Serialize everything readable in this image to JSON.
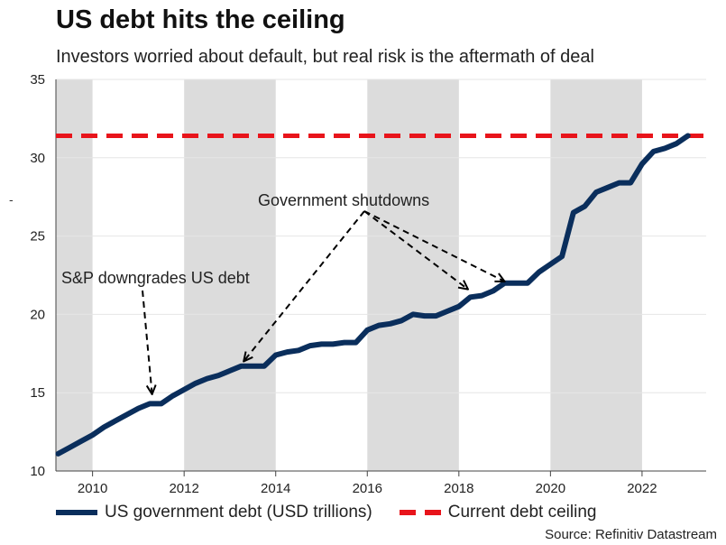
{
  "header": {
    "title": "US debt hits the ceiling",
    "subtitle": "Investors worried about default, but real risk is the aftermath of deal",
    "stray_mark": "-"
  },
  "legend": {
    "debt_label": "US government debt (USD trillions)",
    "ceiling_label": "Current debt ceiling"
  },
  "source": "Source: Refinitiv Datastream",
  "colors": {
    "debt": "#0a2e5c",
    "ceiling": "#e8141b",
    "band": "#dcdcdc",
    "grid": "#e6e6e6"
  },
  "chart_data": {
    "type": "line",
    "title": "US debt hits the ceiling",
    "subtitle": "Investors worried about default, but real risk is the aftermath of deal",
    "xlim": [
      2009.2,
      2023.4
    ],
    "ylim": [
      10,
      35
    ],
    "x_ticks": [
      2010,
      2012,
      2014,
      2016,
      2018,
      2020,
      2022
    ],
    "y_ticks": [
      10,
      15,
      20,
      25,
      30,
      35
    ],
    "grid": true,
    "legend_position": "bottom",
    "shaded_bands": [
      [
        2009.2,
        2010.0
      ],
      [
        2012.0,
        2014.0
      ],
      [
        2016.0,
        2018.0
      ],
      [
        2020.0,
        2022.0
      ]
    ],
    "reference_lines": [
      {
        "name": "Current debt ceiling",
        "y": 31.4,
        "style": "dashed"
      }
    ],
    "series": [
      {
        "name": "US government debt (USD trillions)",
        "x": [
          2009.25,
          2009.5,
          2009.75,
          2010.0,
          2010.25,
          2010.5,
          2010.75,
          2011.0,
          2011.25,
          2011.5,
          2011.75,
          2012.0,
          2012.25,
          2012.5,
          2012.75,
          2013.0,
          2013.25,
          2013.5,
          2013.75,
          2014.0,
          2014.25,
          2014.5,
          2014.75,
          2015.0,
          2015.25,
          2015.5,
          2015.75,
          2016.0,
          2016.25,
          2016.5,
          2016.75,
          2017.0,
          2017.25,
          2017.5,
          2017.75,
          2018.0,
          2018.25,
          2018.5,
          2018.75,
          2019.0,
          2019.25,
          2019.5,
          2019.75,
          2020.0,
          2020.25,
          2020.5,
          2020.75,
          2021.0,
          2021.25,
          2021.5,
          2021.75,
          2022.0,
          2022.25,
          2022.5,
          2022.75,
          2023.0
        ],
        "y": [
          11.1,
          11.5,
          11.9,
          12.3,
          12.8,
          13.2,
          13.6,
          14.0,
          14.3,
          14.3,
          14.8,
          15.2,
          15.6,
          15.9,
          16.1,
          16.4,
          16.7,
          16.7,
          16.7,
          17.4,
          17.6,
          17.7,
          18.0,
          18.1,
          18.1,
          18.2,
          18.2,
          19.0,
          19.3,
          19.4,
          19.6,
          20.0,
          19.9,
          19.9,
          20.2,
          20.5,
          21.1,
          21.2,
          21.5,
          22.0,
          22.0,
          22.0,
          22.7,
          23.2,
          23.7,
          26.5,
          26.9,
          27.8,
          28.1,
          28.4,
          28.4,
          29.6,
          30.4,
          30.6,
          30.9,
          31.4
        ]
      }
    ],
    "annotations": [
      {
        "text": "S&P downgrades US debt",
        "x": 2011.3,
        "y": 14.9
      },
      {
        "text": "Government shutdowns",
        "x": 2013.3,
        "y": 17.0
      },
      {
        "text": "Government shutdowns",
        "x": 2018.2,
        "y": 21.6
      },
      {
        "text": "Government shutdowns",
        "x": 2019.0,
        "y": 22.1
      }
    ]
  }
}
